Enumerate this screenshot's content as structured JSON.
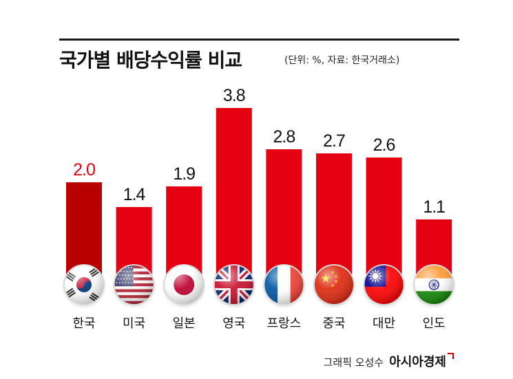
{
  "header": {
    "title": "국가별 배당수익률 비교",
    "subtitle": "(단위: %, 자료: 한국거래소)"
  },
  "credit": {
    "author": "그래픽 오성수",
    "brand": "아시아경제"
  },
  "chart_data": {
    "type": "bar",
    "title": "국가별 배당수익률 비교",
    "unit": "%",
    "source": "한국거래소",
    "categories": [
      "한국",
      "미국",
      "일본",
      "영국",
      "프랑스",
      "중국",
      "대만",
      "인도"
    ],
    "values": [
      2.0,
      1.4,
      1.9,
      3.8,
      2.8,
      2.7,
      2.6,
      1.1
    ],
    "value_labels": [
      "2.0",
      "1.4",
      "1.9",
      "3.8",
      "2.8",
      "2.7",
      "2.6",
      "1.1"
    ],
    "flags": [
      "korea-flag-icon",
      "usa-flag-icon",
      "japan-flag-icon",
      "uk-flag-icon",
      "france-flag-icon",
      "china-flag-icon",
      "taiwan-flag-icon",
      "india-flag-icon"
    ],
    "highlight_index": 0,
    "colors": {
      "bar": "#e50012",
      "highlight_bar": "#b80000",
      "label": "#111111",
      "highlight_label": "#e50012"
    },
    "ylim": [
      0,
      3.8
    ],
    "grid": false,
    "legend": "none"
  }
}
